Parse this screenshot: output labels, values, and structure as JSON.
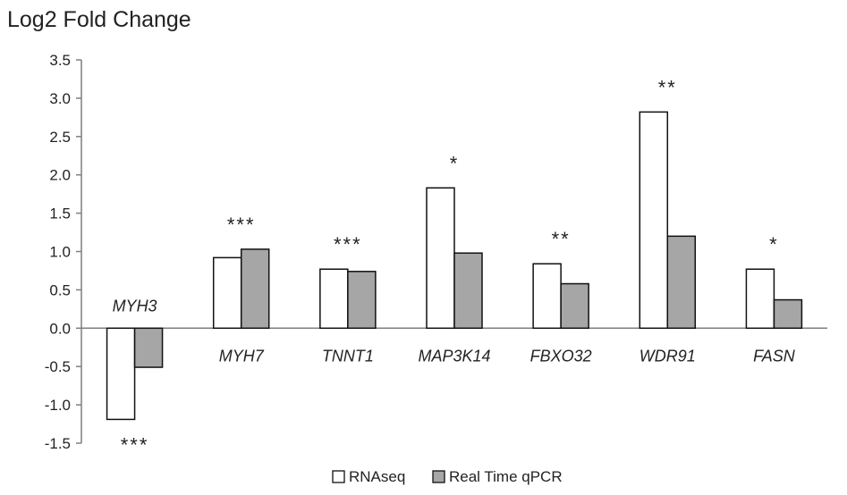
{
  "chart_data": {
    "type": "bar",
    "title": "Log2 Fold Change",
    "categories": [
      "MYH3",
      "MYH7",
      "TNNT1",
      "MAP3K14",
      "FBXO32",
      "WDR91",
      "FASN"
    ],
    "series": [
      {
        "name": "RNAseq",
        "values": [
          -1.19,
          0.92,
          0.77,
          1.83,
          0.84,
          2.82,
          0.77
        ],
        "color": "#ffffff"
      },
      {
        "name": "Real Time qPCR",
        "values": [
          -0.51,
          1.03,
          0.74,
          0.98,
          0.58,
          1.2,
          0.37
        ],
        "color": "#a6a6a6"
      }
    ],
    "significance": [
      "***",
      "***",
      "***",
      "*",
      "**",
      "**",
      "*"
    ],
    "ylim": [
      -1.5,
      3.5
    ],
    "yticks": [
      "-1.5",
      "-1.0",
      "-0.5",
      "0.0",
      "0.5",
      "1.0",
      "1.5",
      "2.0",
      "2.5",
      "3.0",
      "3.5"
    ],
    "xlabel": "",
    "ylabel": "",
    "legend_position": "bottom",
    "grid": false
  }
}
